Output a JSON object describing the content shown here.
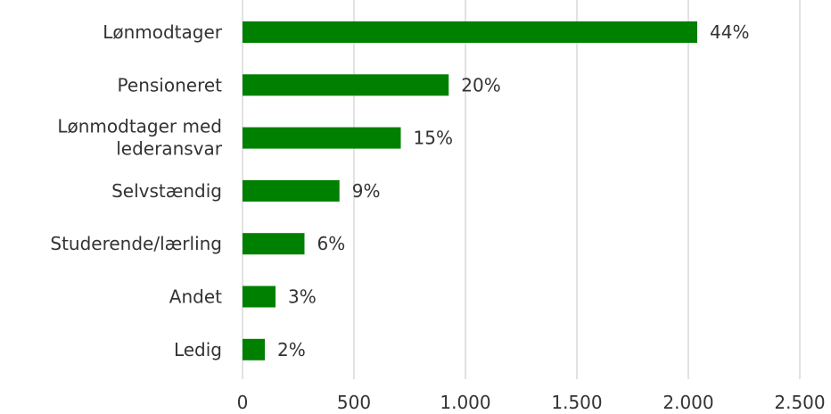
{
  "chart_data": {
    "type": "bar",
    "orientation": "horizontal",
    "categories": [
      "Lønmodtager",
      "Pensioneret",
      "Lønmodtager med lederansvar",
      "Selvstændig",
      "Studerende/lærling",
      "Andet",
      "Ledig"
    ],
    "values": [
      2040,
      925,
      710,
      435,
      278,
      148,
      100
    ],
    "data_labels": [
      "44%",
      "20%",
      "15%",
      "9%",
      "6%",
      "3%",
      "2%"
    ],
    "xlim": [
      0,
      2500
    ],
    "x_ticks": [
      0,
      500,
      1000,
      1500,
      2000,
      2500
    ],
    "x_tick_labels": [
      "0",
      "500",
      "1.000",
      "1.500",
      "2.000",
      "2.500"
    ],
    "gridlines": "vertical",
    "legend": "none",
    "colors": {
      "bar": "#008000",
      "grid": "#d9d9d9",
      "text": "#333333"
    }
  }
}
